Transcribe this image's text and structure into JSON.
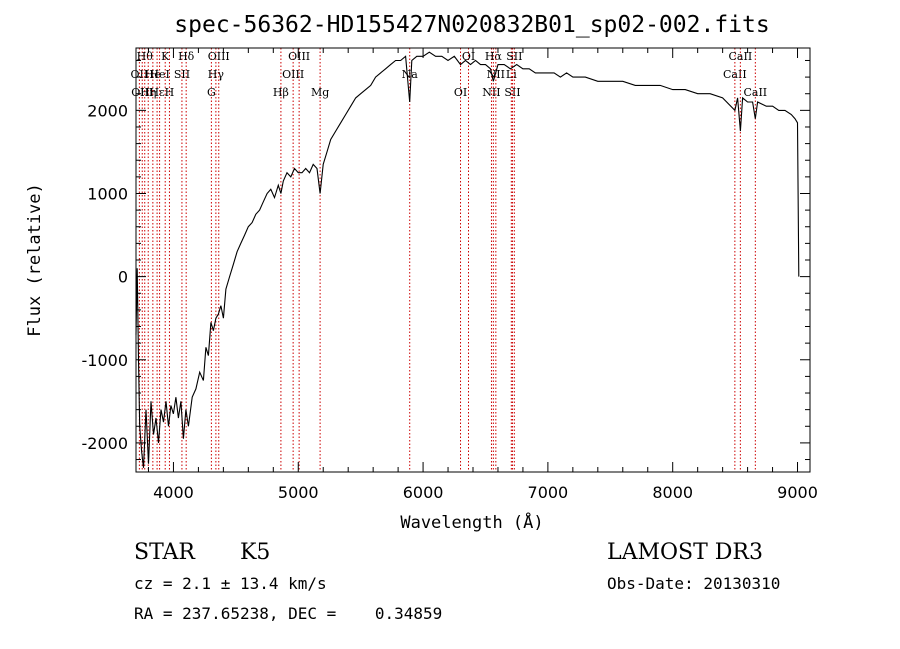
{
  "chart_data": {
    "type": "line",
    "title": "spec-56362-HD155427N020832B01_sp02-002.fits",
    "xlabel": "Wavelength (Å)",
    "ylabel": "Flux (relative)",
    "xlim": [
      3700,
      9100
    ],
    "ylim": [
      -2350,
      2750
    ],
    "xticks": [
      4000,
      5000,
      6000,
      7000,
      8000,
      9000
    ],
    "yticks": [
      -2000,
      -1000,
      0,
      1000,
      2000
    ],
    "grid": false,
    "series": [
      {
        "points": [
          [
            3700,
            -700
          ],
          [
            3710,
            100
          ],
          [
            3720,
            -1000
          ],
          [
            3730,
            -1800
          ],
          [
            3745,
            -2100
          ],
          [
            3760,
            -2300
          ],
          [
            3780,
            -1600
          ],
          [
            3800,
            -2250
          ],
          [
            3820,
            -1500
          ],
          [
            3840,
            -1900
          ],
          [
            3860,
            -1700
          ],
          [
            3880,
            -2000
          ],
          [
            3900,
            -1600
          ],
          [
            3920,
            -1750
          ],
          [
            3940,
            -1500
          ],
          [
            3960,
            -1800
          ],
          [
            3980,
            -1550
          ],
          [
            4000,
            -1650
          ],
          [
            4020,
            -1450
          ],
          [
            4040,
            -1700
          ],
          [
            4060,
            -1500
          ],
          [
            4080,
            -1950
          ],
          [
            4100,
            -1600
          ],
          [
            4120,
            -1800
          ],
          [
            4150,
            -1450
          ],
          [
            4180,
            -1350
          ],
          [
            4210,
            -1150
          ],
          [
            4240,
            -1250
          ],
          [
            4260,
            -850
          ],
          [
            4280,
            -950
          ],
          [
            4300,
            -550
          ],
          [
            4320,
            -650
          ],
          [
            4340,
            -500
          ],
          [
            4360,
            -450
          ],
          [
            4380,
            -350
          ],
          [
            4400,
            -500
          ],
          [
            4420,
            -150
          ],
          [
            4450,
            0
          ],
          [
            4480,
            150
          ],
          [
            4510,
            300
          ],
          [
            4540,
            400
          ],
          [
            4570,
            500
          ],
          [
            4600,
            600
          ],
          [
            4630,
            650
          ],
          [
            4660,
            750
          ],
          [
            4690,
            800
          ],
          [
            4720,
            900
          ],
          [
            4750,
            1000
          ],
          [
            4780,
            1050
          ],
          [
            4810,
            950
          ],
          [
            4840,
            1100
          ],
          [
            4861,
            1000
          ],
          [
            4880,
            1150
          ],
          [
            4910,
            1250
          ],
          [
            4940,
            1200
          ],
          [
            4970,
            1300
          ],
          [
            5000,
            1250
          ],
          [
            5030,
            1250
          ],
          [
            5060,
            1300
          ],
          [
            5090,
            1250
          ],
          [
            5120,
            1350
          ],
          [
            5150,
            1300
          ],
          [
            5175,
            1000
          ],
          [
            5200,
            1350
          ],
          [
            5230,
            1500
          ],
          [
            5260,
            1650
          ],
          [
            5300,
            1750
          ],
          [
            5340,
            1850
          ],
          [
            5380,
            1950
          ],
          [
            5420,
            2050
          ],
          [
            5460,
            2150
          ],
          [
            5500,
            2200
          ],
          [
            5540,
            2250
          ],
          [
            5580,
            2300
          ],
          [
            5620,
            2400
          ],
          [
            5660,
            2450
          ],
          [
            5700,
            2500
          ],
          [
            5740,
            2550
          ],
          [
            5780,
            2600
          ],
          [
            5820,
            2600
          ],
          [
            5860,
            2650
          ],
          [
            5893,
            2100
          ],
          [
            5910,
            2600
          ],
          [
            5950,
            2650
          ],
          [
            6000,
            2650
          ],
          [
            6050,
            2700
          ],
          [
            6100,
            2650
          ],
          [
            6150,
            2650
          ],
          [
            6200,
            2600
          ],
          [
            6250,
            2650
          ],
          [
            6300,
            2550
          ],
          [
            6340,
            2600
          ],
          [
            6380,
            2550
          ],
          [
            6420,
            2600
          ],
          [
            6460,
            2550
          ],
          [
            6500,
            2550
          ],
          [
            6540,
            2500
          ],
          [
            6563,
            2350
          ],
          [
            6600,
            2550
          ],
          [
            6650,
            2550
          ],
          [
            6700,
            2500
          ],
          [
            6750,
            2550
          ],
          [
            6800,
            2500
          ],
          [
            6850,
            2500
          ],
          [
            6900,
            2450
          ],
          [
            6950,
            2450
          ],
          [
            7000,
            2450
          ],
          [
            7050,
            2450
          ],
          [
            7100,
            2400
          ],
          [
            7150,
            2450
          ],
          [
            7200,
            2400
          ],
          [
            7300,
            2400
          ],
          [
            7400,
            2350
          ],
          [
            7500,
            2350
          ],
          [
            7600,
            2350
          ],
          [
            7700,
            2300
          ],
          [
            7800,
            2300
          ],
          [
            7900,
            2300
          ],
          [
            8000,
            2250
          ],
          [
            8100,
            2250
          ],
          [
            8200,
            2200
          ],
          [
            8300,
            2200
          ],
          [
            8400,
            2150
          ],
          [
            8498,
            2000
          ],
          [
            8520,
            2150
          ],
          [
            8542,
            1750
          ],
          [
            8560,
            2150
          ],
          [
            8600,
            2100
          ],
          [
            8640,
            2100
          ],
          [
            8662,
            1900
          ],
          [
            8680,
            2100
          ],
          [
            8750,
            2050
          ],
          [
            8800,
            2050
          ],
          [
            8850,
            2000
          ],
          [
            8900,
            2000
          ],
          [
            8950,
            1950
          ],
          [
            8980,
            1900
          ],
          [
            9000,
            1850
          ],
          [
            9010,
            0
          ]
        ]
      }
    ],
    "line_markers": [
      {
        "wavelength": 3727,
        "label": "OII",
        "row": 1
      },
      {
        "wavelength": 3750,
        "label": "OIII",
        "row": 2
      },
      {
        "wavelength": 3770,
        "label": "Hθ",
        "row": 0
      },
      {
        "wavelength": 3798,
        "label": "Hη",
        "row": 2
      },
      {
        "wavelength": 3835,
        "label": "He",
        "row": 1
      },
      {
        "wavelength": 3869,
        "label": "Hε",
        "row": 2
      },
      {
        "wavelength": 3889,
        "label": "HeI",
        "row": 1
      },
      {
        "wavelength": 3934,
        "label": "K",
        "row": 0
      },
      {
        "wavelength": 3968,
        "label": "H",
        "row": 2
      },
      {
        "wavelength": 4068,
        "label": "SII",
        "row": 1
      },
      {
        "wavelength": 4102,
        "label": "Hδ",
        "row": 0
      },
      {
        "wavelength": 4304,
        "label": "G",
        "row": 2
      },
      {
        "wavelength": 4340,
        "label": "Hγ",
        "row": 1
      },
      {
        "wavelength": 4363,
        "label": "OIII",
        "row": 0
      },
      {
        "wavelength": 4861,
        "label": "Hβ",
        "row": 2
      },
      {
        "wavelength": 4959,
        "label": "OIII",
        "row": 1
      },
      {
        "wavelength": 5007,
        "label": "OIII",
        "row": 0
      },
      {
        "wavelength": 5175,
        "label": "Mg",
        "row": 2
      },
      {
        "wavelength": 5893,
        "label": "Na",
        "row": 1
      },
      {
        "wavelength": 6300,
        "label": "OI",
        "row": 2
      },
      {
        "wavelength": 6364,
        "label": "OI",
        "row": 0
      },
      {
        "wavelength": 6548,
        "label": "NII",
        "row": 2
      },
      {
        "wavelength": 6563,
        "label": "Hα",
        "row": 0
      },
      {
        "wavelength": 6583,
        "label": "NII",
        "row": 1
      },
      {
        "wavelength": 6707,
        "label": "Li",
        "row": 1
      },
      {
        "wavelength": 6716,
        "label": "SII",
        "row": 2
      },
      {
        "wavelength": 6731,
        "label": "SII",
        "row": 0
      },
      {
        "wavelength": 8498,
        "label": "CaII",
        "row": 1
      },
      {
        "wavelength": 8542,
        "label": "CaII",
        "row": 0
      },
      {
        "wavelength": 8662,
        "label": "CaII",
        "row": 2
      }
    ]
  },
  "info": {
    "class": "STAR",
    "subclass": "K5",
    "survey": "LAMOST DR3",
    "cz": "cz = 2.1 ± 13.4 km/s",
    "obs_date": "Obs-Date: 20130310",
    "radec": "RA = 237.65238, DEC =    0.34859"
  },
  "colors": {
    "line_marker": "#cc0000",
    "spectrum": "#000000"
  }
}
